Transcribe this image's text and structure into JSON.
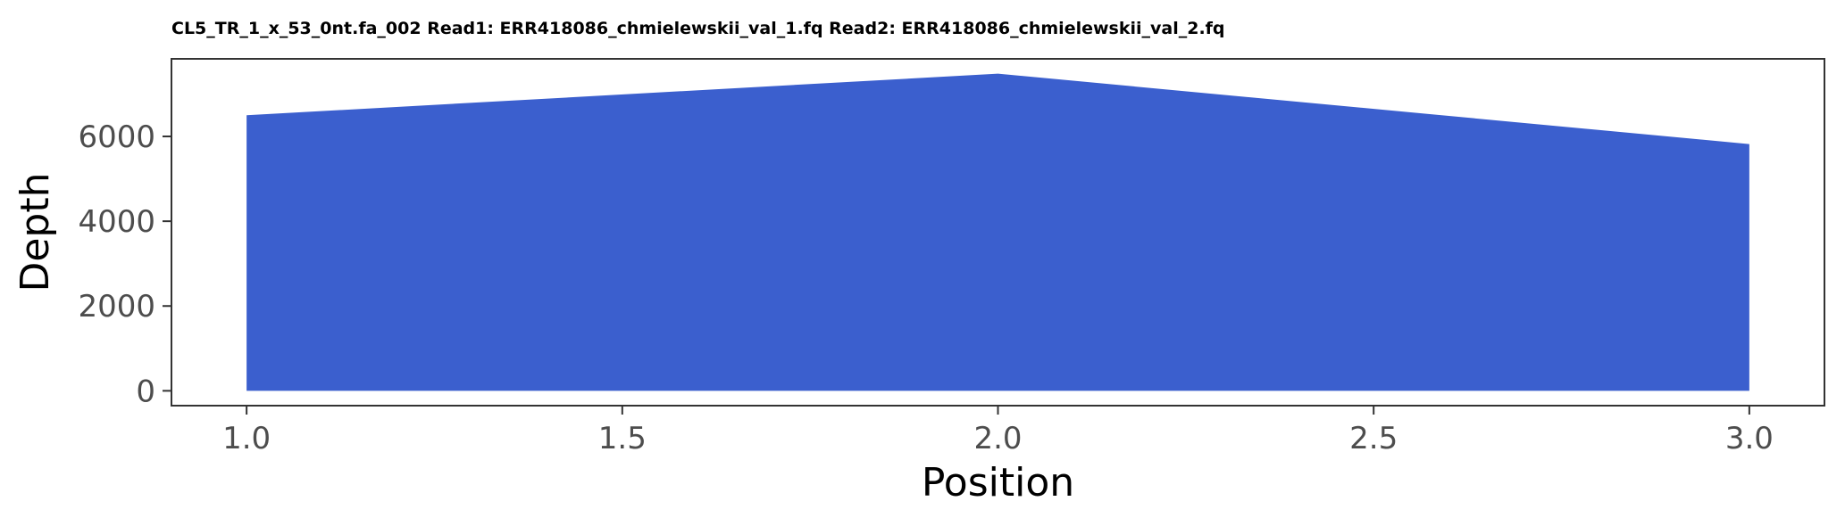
{
  "chart_data": {
    "type": "area",
    "title": "CL5_TR_1_x_53_0nt.fa_002 Read1: ERR418086_chmielewskii_val_1.fq Read2: ERR418086_chmielewskii_val_2.fq",
    "xlabel": "Position",
    "ylabel": "Depth",
    "x": [
      1,
      2,
      3
    ],
    "series": [
      {
        "values": [
          6500,
          7480,
          5820
        ]
      }
    ],
    "xlim": [
      0.9,
      3.1
    ],
    "ylim": [
      -350,
      7830
    ],
    "xticks": [
      1.0,
      1.5,
      2.0,
      2.5,
      3.0
    ],
    "xtick_labels": [
      "1.0",
      "1.5",
      "2.0",
      "2.5",
      "3.0"
    ],
    "yticks": [
      0,
      2000,
      4000,
      6000
    ],
    "ytick_labels": [
      "0",
      "2000",
      "4000",
      "6000"
    ],
    "grid": false,
    "legend": "none",
    "fill_color": "#3b5fce",
    "frame_color": "#333333"
  }
}
